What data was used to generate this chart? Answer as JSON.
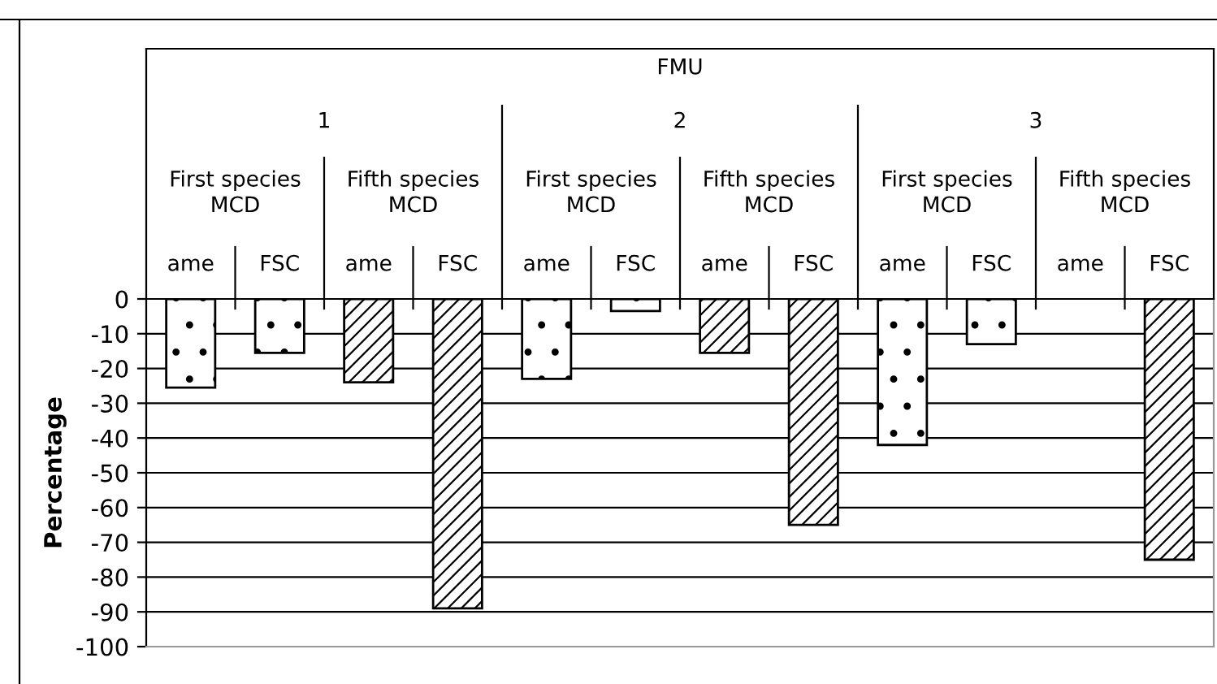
{
  "chart_data": {
    "type": "bar",
    "categories": [
      "ame",
      "FSC",
      "ame",
      "FSC",
      "ame",
      "FSC",
      "ame",
      "FSC",
      "ame",
      "FSC",
      "ame",
      "FSC"
    ],
    "series": [
      {
        "color": "#000000",
        "values": [
          -25.5,
          -15.5,
          null,
          null,
          -23,
          -3.5,
          null,
          null,
          -42,
          -13,
          null,
          null
        ]
      },
      {
        "color": "#000000",
        "values": [
          null,
          null,
          -24,
          -89,
          null,
          null,
          -15.5,
          -65,
          null,
          null,
          null,
          -75
        ]
      }
    ],
    "ylabel": "Percentage",
    "annotations": [
      "FMU",
      "1",
      "2",
      "3",
      "First species MCD",
      "Fifth species MCD",
      "First species MCD",
      "Fifth species MCD",
      "First species MCD",
      "Fifth species MCD"
    ],
    "ylim": [
      -100,
      0
    ],
    "yticks": [
      0,
      -10,
      -20,
      -30,
      -40,
      -50,
      -60,
      -70,
      -80,
      -90,
      -100
    ],
    "grid": "y",
    "legend": false
  }
}
